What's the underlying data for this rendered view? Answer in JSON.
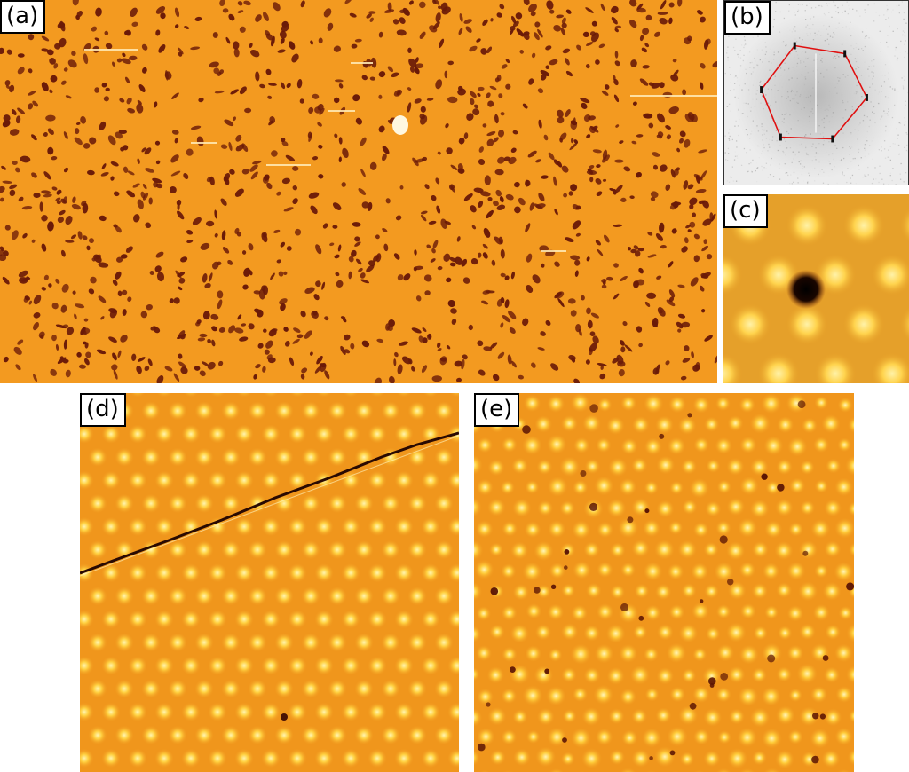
{
  "panels": {
    "a": {
      "label": "(a)"
    },
    "b": {
      "label": "(b)"
    },
    "c": {
      "label": "(c)"
    },
    "d": {
      "label": "(d)"
    },
    "e": {
      "label": "(e)"
    }
  },
  "colors": {
    "stm_background": "#f39a20",
    "stm_dark_feature": "#6a1a08",
    "stm_bright_feature": "#ffe68a",
    "fft_background": "#e6e6e6",
    "fft_hexagon": "#e01010"
  }
}
